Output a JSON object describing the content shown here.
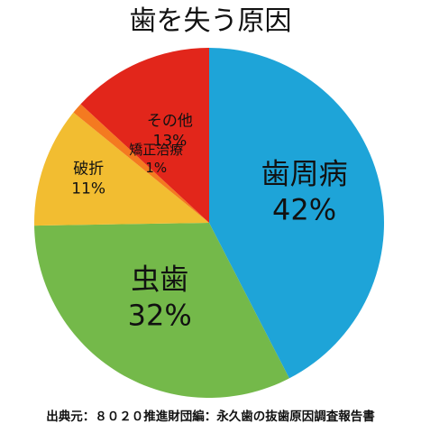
{
  "chart_data": {
    "type": "pie",
    "title": "歯を失う原因",
    "slices": [
      {
        "label": "歯周病",
        "value": 42,
        "value_label": "42%",
        "color": "#1ea4d8"
      },
      {
        "label": "虫歯",
        "value": 32,
        "value_label": "32%",
        "color": "#74b94a"
      },
      {
        "label": "破折",
        "value": 11,
        "value_label": "11%",
        "color": "#f2bd31"
      },
      {
        "label": "矯正治療",
        "value": 1,
        "value_label": "1%",
        "color": "#f47a20"
      },
      {
        "label": "その他",
        "value": 13,
        "value_label": "13%",
        "color": "#e2261b"
      }
    ],
    "start": "12 o'clock",
    "direction": "clockwise",
    "source": "出典元：８０２０推進財団編：永久歯の抜歯原因調査報告書"
  }
}
